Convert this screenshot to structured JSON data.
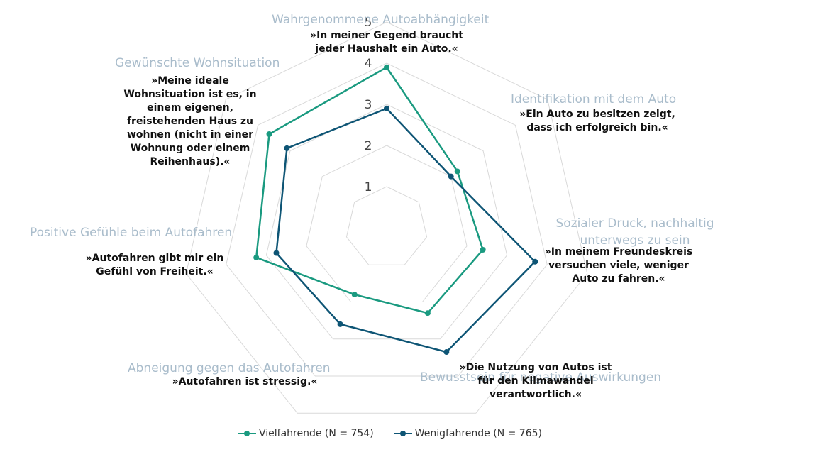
{
  "chart_data": {
    "type": "radar",
    "ticks": [
      "1",
      "2",
      "3",
      "4",
      "5"
    ],
    "rmax": 5,
    "categories": [
      {
        "title": "Wahrgenommene Autoabhängigkeit",
        "quote": "»In meiner Gegend braucht\njeder Haushalt ein Auto.«"
      },
      {
        "title": "Identifikation mit dem Auto",
        "quote": "»Ein Auto zu besitzen zeigt,\ndass ich erfolgreich bin.«"
      },
      {
        "title": "Sozialer Druck, nachhaltig\nunterwegs zu sein",
        "quote": "»In meinem Freundeskreis\nversuchen viele, weniger\nAuto zu fahren.«"
      },
      {
        "title": "Bewusstsein für negative Auswirkungen",
        "quote": "»Die Nutzung von Autos ist\nfür den Klimawandel\nverantwortlich.«"
      },
      {
        "title": "Abneigung gegen das Autofahren",
        "quote": "»Autofahren ist stressig.«"
      },
      {
        "title": "Positive Gefühle beim Autofahren",
        "quote": "»Autofahren gibt mir ein\nGefühl von Freiheit.«"
      },
      {
        "title": "Gewünschte Wohnsituation",
        "quote": "»Meine ideale\nWohnsituation ist es, in\neinem eigenen,\nfreistehenden Haus zu\nwohnen (nicht in einer\nWohnung oder einem\nReihenhaus).«"
      }
    ],
    "series": [
      {
        "name": "Vielfahrende (N = 754)",
        "color": "#1a9a80",
        "values": [
          3.9,
          2.2,
          2.4,
          2.3,
          1.8,
          3.25,
          3.65
        ]
      },
      {
        "name": "Wenigfahrende (N = 765)",
        "color": "#0e5575",
        "values": [
          2.9,
          2.0,
          3.7,
          3.35,
          2.6,
          2.75,
          3.1
        ]
      }
    ]
  },
  "legend": {
    "items": [
      "Vielfahrende (N = 754)",
      "Wenigfahrende (N = 765)"
    ]
  }
}
